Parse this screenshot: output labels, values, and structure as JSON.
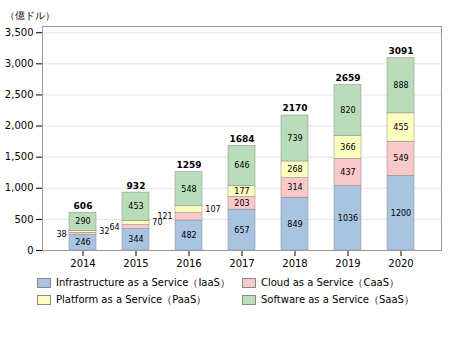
{
  "chart_data": {
    "type": "bar",
    "stacked": true,
    "categories": [
      "2014",
      "2015",
      "2016",
      "2017",
      "2018",
      "2019",
      "2020"
    ],
    "series": [
      {
        "name": "Infrastructure as a Service（IaaS）",
        "color": "#a8c4e0",
        "values": [
          246,
          344,
          482,
          657,
          849,
          1036,
          1200
        ]
      },
      {
        "name": "Cloud as a Service（CaaS）",
        "color": "#f9c8c8",
        "values": [
          38,
          64,
          121,
          203,
          314,
          437,
          549
        ]
      },
      {
        "name": "Platform as a Service（PaaS）",
        "color": "#fdfdc0",
        "values": [
          32,
          70,
          107,
          177,
          268,
          366,
          455
        ]
      },
      {
        "name": "Software as a Service（SaaS）",
        "color": "#b8ddb8",
        "values": [
          290,
          453,
          548,
          646,
          739,
          820,
          888
        ]
      }
    ],
    "totals": [
      606,
      932,
      1259,
      1684,
      2170,
      2659,
      3091
    ],
    "ylabel": "（億ドル）",
    "ylim": [
      0,
      3600
    ],
    "yticks": [
      0,
      500,
      {
        "value": 1000,
        "label": "1,000"
      },
      {
        "value": 1500,
        "label": "1,500"
      },
      {
        "value": 2000,
        "label": "2,000"
      },
      {
        "value": 2500,
        "label": "2,500"
      },
      {
        "value": 3000,
        "label": "3,000"
      },
      {
        "value": 3500,
        "label": "3,500"
      }
    ],
    "grid": true,
    "legend": "bottom",
    "data_labels": true
  }
}
